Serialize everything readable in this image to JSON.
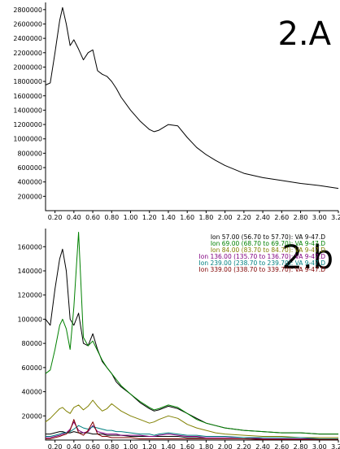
{
  "chart_data": [
    {
      "type": "line",
      "panel_label": "2.A",
      "x": [
        0.1,
        0.15,
        0.2,
        0.25,
        0.28,
        0.32,
        0.36,
        0.4,
        0.45,
        0.5,
        0.55,
        0.6,
        0.65,
        0.7,
        0.75,
        0.8,
        0.85,
        0.9,
        1.0,
        1.1,
        1.2,
        1.25,
        1.3,
        1.4,
        1.5,
        1.6,
        1.7,
        1.8,
        1.9,
        2.0,
        2.2,
        2.4,
        2.6,
        2.8,
        3.0,
        3.2
      ],
      "series": [
        {
          "color": "#000000",
          "values": [
            1750000,
            1780000,
            2200000,
            2650000,
            2830000,
            2600000,
            2300000,
            2380000,
            2250000,
            2100000,
            2200000,
            2240000,
            1950000,
            1900000,
            1870000,
            1800000,
            1700000,
            1580000,
            1400000,
            1250000,
            1130000,
            1100000,
            1120000,
            1200000,
            1180000,
            1020000,
            880000,
            780000,
            700000,
            630000,
            520000,
            460000,
            420000,
            380000,
            350000,
            310000
          ]
        }
      ],
      "xlim": [
        0.1,
        3.2
      ],
      "ylim": [
        0,
        2900000
      ],
      "x_ticks": [
        "0.20",
        "0.40",
        "0.60",
        "0.80",
        "1.00",
        "1.20",
        "1.40",
        "1.60",
        "1.80",
        "2.00",
        "2.20",
        "2.40",
        "2.60",
        "2.80",
        "3.00",
        "3.20"
      ],
      "y_ticks": [
        "200000",
        "400000",
        "600000",
        "800000",
        "1000000",
        "1200000",
        "1400000",
        "1600000",
        "1800000",
        "2000000",
        "2200000",
        "2400000",
        "2600000",
        "2800000"
      ]
    },
    {
      "type": "line",
      "panel_label": "2.b",
      "x": [
        0.1,
        0.15,
        0.2,
        0.25,
        0.28,
        0.32,
        0.36,
        0.4,
        0.45,
        0.5,
        0.55,
        0.6,
        0.65,
        0.7,
        0.75,
        0.8,
        0.85,
        0.9,
        1.0,
        1.1,
        1.2,
        1.25,
        1.3,
        1.4,
        1.5,
        1.6,
        1.7,
        1.8,
        1.9,
        2.0,
        2.2,
        2.4,
        2.6,
        2.8,
        3.0,
        3.2
      ],
      "series": [
        {
          "color": "#000000",
          "values": [
            100000,
            95000,
            125000,
            150000,
            158000,
            140000,
            100000,
            95000,
            105000,
            80000,
            78000,
            88000,
            75000,
            65000,
            60000,
            55000,
            48000,
            44000,
            38000,
            31000,
            26000,
            24000,
            25000,
            28000,
            26000,
            22000,
            18000,
            14000,
            12000,
            10000,
            8000,
            7000,
            6000,
            6000,
            5000,
            5000
          ]
        },
        {
          "name": "Ion  57.00 (56.70 to 57.70): VA 9-47.D",
          "color": "#000000",
          "values": [
            5000,
            5000,
            6000,
            7000,
            7000,
            6000,
            6000,
            7000,
            6000,
            6000,
            6000,
            5000,
            5000,
            5000,
            4000,
            4000,
            4000,
            4000,
            3000,
            3000,
            3000,
            3000,
            3000,
            3000,
            3000,
            2000,
            2000,
            2000,
            2000,
            2000,
            2000,
            1000,
            1000,
            1000,
            1000,
            1000
          ]
        },
        {
          "name": "Ion  69.00 (68.70 to 69.70): VA 9-47.D",
          "color": "#008000",
          "values": [
            55000,
            58000,
            75000,
            95000,
            100000,
            92000,
            75000,
            110000,
            172000,
            85000,
            78000,
            82000,
            74000,
            66000,
            60000,
            55000,
            50000,
            45000,
            38000,
            32000,
            27000,
            25000,
            26000,
            29000,
            27000,
            22000,
            17000,
            14000,
            12000,
            10000,
            8000,
            7000,
            6000,
            6000,
            5000,
            5000
          ]
        },
        {
          "name": "Ion  84.00 (83.70 to 84.70): VA 9-47.D",
          "color": "#808000",
          "values": [
            15000,
            18000,
            22000,
            26000,
            27000,
            24000,
            22000,
            27000,
            29000,
            25000,
            28000,
            33000,
            28000,
            24000,
            26000,
            30000,
            27000,
            24000,
            20000,
            17000,
            14000,
            15000,
            17000,
            20000,
            18000,
            13000,
            10000,
            8000,
            6000,
            5000,
            4000,
            3000,
            3000,
            2000,
            2000,
            2000
          ]
        },
        {
          "name": "Ion 136.00 (135.70 to 136.70): VA 9-47.D",
          "color": "#800080",
          "values": [
            2000,
            2000,
            3000,
            4000,
            5000,
            6000,
            9000,
            15000,
            8000,
            6000,
            7000,
            12000,
            7000,
            6000,
            5000,
            5000,
            5000,
            4000,
            4000,
            4000,
            3000,
            3000,
            4000,
            5000,
            4000,
            3000,
            3000,
            2000,
            2000,
            2000,
            2000,
            1000,
            1000,
            1000,
            1000,
            1000
          ]
        },
        {
          "name": "Ion 239.00 (238.70 to 239.70): VA 9-47.D",
          "color": "#008080",
          "values": [
            3000,
            3000,
            4000,
            5000,
            6000,
            6000,
            7000,
            9000,
            12000,
            10000,
            9000,
            11000,
            10000,
            9000,
            8000,
            8000,
            7000,
            7000,
            6000,
            5000,
            5000,
            4000,
            5000,
            6000,
            5000,
            4000,
            4000,
            3000,
            3000,
            3000,
            2000,
            2000,
            2000,
            2000,
            1000,
            1000
          ]
        },
        {
          "name": "Ion 339.00 (338.70 to 339.70): VA 9-47.D",
          "color": "#800000",
          "values": [
            1000,
            1000,
            2000,
            3000,
            4000,
            5000,
            8000,
            17000,
            6000,
            4000,
            8000,
            15000,
            5000,
            3000,
            3000,
            2000,
            2000,
            2000,
            2000,
            1000,
            1000,
            1000,
            1000,
            1000,
            1000,
            1000,
            1000,
            1000,
            1000,
            1000,
            1000,
            500,
            500,
            500,
            500,
            500
          ]
        }
      ],
      "xlim": [
        0.1,
        3.2
      ],
      "ylim": [
        0,
        175000
      ],
      "x_ticks": [
        "0.20",
        "0.40",
        "0.60",
        "0.80",
        "1.00",
        "1.20",
        "1.40",
        "1.60",
        "1.80",
        "2.00",
        "2.20",
        "2.40",
        "2.60",
        "2.80",
        "3.00",
        "3.20"
      ],
      "y_ticks": [
        "20000",
        "40000",
        "60000",
        "80000",
        "100000",
        "120000",
        "140000",
        "160000"
      ],
      "legend_position": "top-right"
    }
  ]
}
